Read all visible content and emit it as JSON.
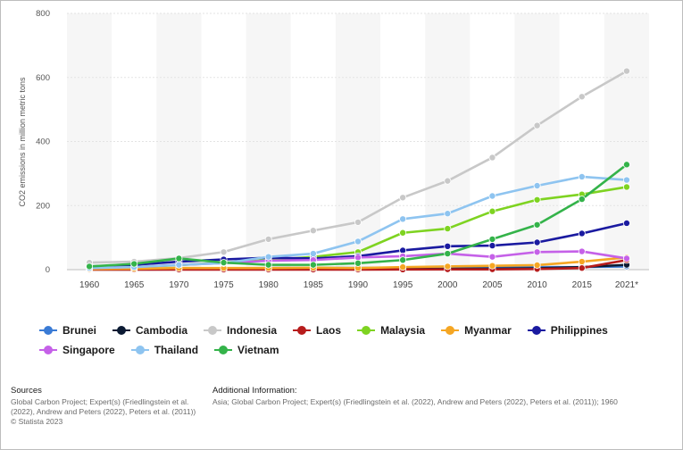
{
  "chart_data": {
    "type": "line",
    "title": "",
    "xlabel": "",
    "ylabel": "CO2 emissions in million metric tons",
    "ylim": [
      0,
      800
    ],
    "yticks": [
      "0",
      "200",
      "400",
      "600",
      "800"
    ],
    "categories": [
      "1960",
      "1965",
      "1970",
      "1975",
      "1980",
      "1985",
      "1990",
      "1995",
      "2000",
      "2005",
      "2010",
      "2015",
      "2021*"
    ],
    "grid": true,
    "legend_position": "bottom",
    "series": [
      {
        "name": "Brunei",
        "color": "#3a7bd5",
        "values": [
          1,
          1,
          2,
          3,
          5,
          6,
          5,
          6,
          6,
          7,
          8,
          8,
          10
        ]
      },
      {
        "name": "Cambodia",
        "color": "#0b1a33",
        "values": [
          0.5,
          0.5,
          1,
          1,
          1,
          1,
          1,
          2,
          2,
          3,
          4,
          8,
          15
        ]
      },
      {
        "name": "Indonesia",
        "color": "#c8c8c8",
        "values": [
          22,
          25,
          36,
          55,
          95,
          122,
          148,
          225,
          277,
          350,
          450,
          540,
          620
        ]
      },
      {
        "name": "Laos",
        "color": "#b71c1c",
        "values": [
          0.2,
          0.2,
          0.3,
          0.3,
          0.3,
          0.3,
          0.3,
          0.4,
          1,
          1,
          2,
          5,
          30
        ]
      },
      {
        "name": "Malaysia",
        "color": "#7ed321",
        "values": [
          5,
          8,
          14,
          22,
          30,
          40,
          55,
          115,
          128,
          182,
          218,
          235,
          258
        ]
      },
      {
        "name": "Myanmar",
        "color": "#f5a623",
        "values": [
          2,
          3,
          5,
          5,
          5,
          6,
          5,
          8,
          10,
          12,
          14,
          25,
          38
        ]
      },
      {
        "name": "Philippines",
        "color": "#1a1aa0",
        "values": [
          10,
          15,
          25,
          32,
          37,
          35,
          42,
          60,
          73,
          75,
          85,
          113,
          145
        ]
      },
      {
        "name": "Singapore",
        "color": "#c561e8",
        "values": [
          5,
          8,
          15,
          20,
          28,
          30,
          38,
          42,
          50,
          40,
          55,
          57,
          35
        ]
      },
      {
        "name": "Thailand",
        "color": "#8ec4f0",
        "values": [
          5,
          8,
          15,
          20,
          40,
          50,
          88,
          158,
          175,
          230,
          262,
          290,
          280
        ]
      },
      {
        "name": "Vietnam",
        "color": "#34b34a",
        "values": [
          10,
          18,
          35,
          22,
          15,
          15,
          20,
          30,
          50,
          95,
          140,
          220,
          328
        ]
      }
    ]
  },
  "footer": {
    "sources_heading": "Sources",
    "sources_text": "Global Carbon Project; Expert(s) (Friedlingstein et al. (2022), Andrew and Peters (2022), Peters et al. (2011))",
    "copyright": "© Statista 2023",
    "additional_heading": "Additional Information:",
    "additional_text": "Asia; Global Carbon Project; Expert(s) (Friedlingstein et al. (2022), Andrew and Peters (2022), Peters et al. (2011)); 1960"
  }
}
